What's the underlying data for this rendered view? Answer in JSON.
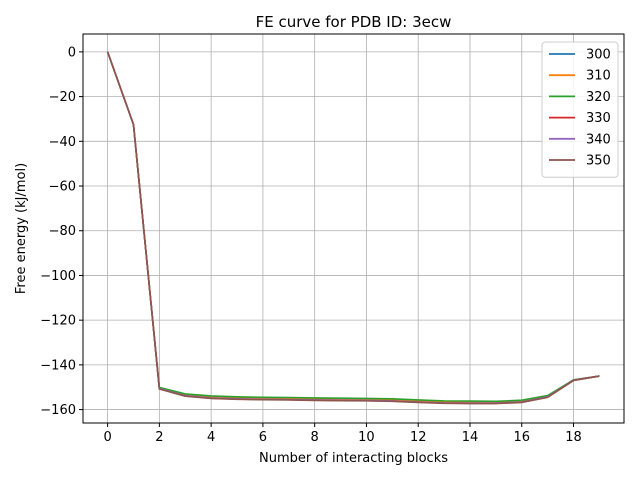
{
  "chart_data": {
    "type": "line",
    "title": "FE curve for PDB ID: 3ecw",
    "xlabel": "Number of interacting blocks",
    "ylabel": "Free energy (kJ/mol)",
    "xlim": [
      -0.95,
      19.95
    ],
    "ylim": [
      -166,
      8
    ],
    "xticks": [
      0,
      2,
      4,
      6,
      8,
      10,
      12,
      14,
      16,
      18
    ],
    "yticks": [
      0,
      -20,
      -40,
      -60,
      -80,
      -100,
      -120,
      -140,
      -160
    ],
    "grid": true,
    "legend_position": "top-right",
    "x": [
      0,
      1,
      2,
      3,
      4,
      5,
      6,
      7,
      8,
      9,
      10,
      11,
      12,
      13,
      14,
      15,
      16,
      17,
      18,
      19
    ],
    "series": [
      {
        "name": "300",
        "color": "#1f77b4",
        "values": [
          0,
          -32.5,
          -150.5,
          -153.6,
          -154.6,
          -155.0,
          -155.2,
          -155.3,
          -155.5,
          -155.6,
          -155.7,
          -155.9,
          -156.4,
          -156.8,
          -156.9,
          -156.9,
          -156.4,
          -154.1,
          -146.8,
          -145.0
        ]
      },
      {
        "name": "310",
        "color": "#ff7f0e",
        "values": [
          0,
          -32.5,
          -150.3,
          -153.3,
          -154.3,
          -154.7,
          -154.9,
          -155.0,
          -155.2,
          -155.3,
          -155.4,
          -155.6,
          -156.1,
          -156.5,
          -156.6,
          -156.7,
          -156.2,
          -154.0,
          -146.8,
          -145.0
        ]
      },
      {
        "name": "320",
        "color": "#2ca02c",
        "values": [
          0,
          -32.5,
          -150.1,
          -153.0,
          -153.9,
          -154.3,
          -154.5,
          -154.6,
          -154.8,
          -154.9,
          -155.0,
          -155.2,
          -155.7,
          -156.1,
          -156.2,
          -156.3,
          -155.8,
          -153.7,
          -146.7,
          -145.0
        ]
      },
      {
        "name": "330",
        "color": "#d62728",
        "values": [
          0,
          -32.5,
          -150.7,
          -153.9,
          -154.9,
          -155.3,
          -155.5,
          -155.6,
          -155.8,
          -155.9,
          -156.0,
          -156.2,
          -156.7,
          -157.1,
          -157.2,
          -157.2,
          -156.7,
          -154.4,
          -146.9,
          -145.0
        ]
      },
      {
        "name": "340",
        "color": "#9467bd",
        "values": [
          0,
          -32.5,
          -150.6,
          -153.8,
          -154.8,
          -155.2,
          -155.4,
          -155.5,
          -155.7,
          -155.8,
          -155.9,
          -156.1,
          -156.6,
          -157.0,
          -157.1,
          -157.1,
          -156.6,
          -154.3,
          -146.9,
          -145.0
        ]
      },
      {
        "name": "350",
        "color": "#8c564b",
        "values": [
          0,
          -32.5,
          -150.8,
          -154.0,
          -155.0,
          -155.4,
          -155.6,
          -155.7,
          -155.9,
          -156.0,
          -156.1,
          -156.3,
          -156.8,
          -157.2,
          -157.3,
          -157.3,
          -156.8,
          -154.5,
          -147.0,
          -145.0
        ]
      }
    ]
  }
}
